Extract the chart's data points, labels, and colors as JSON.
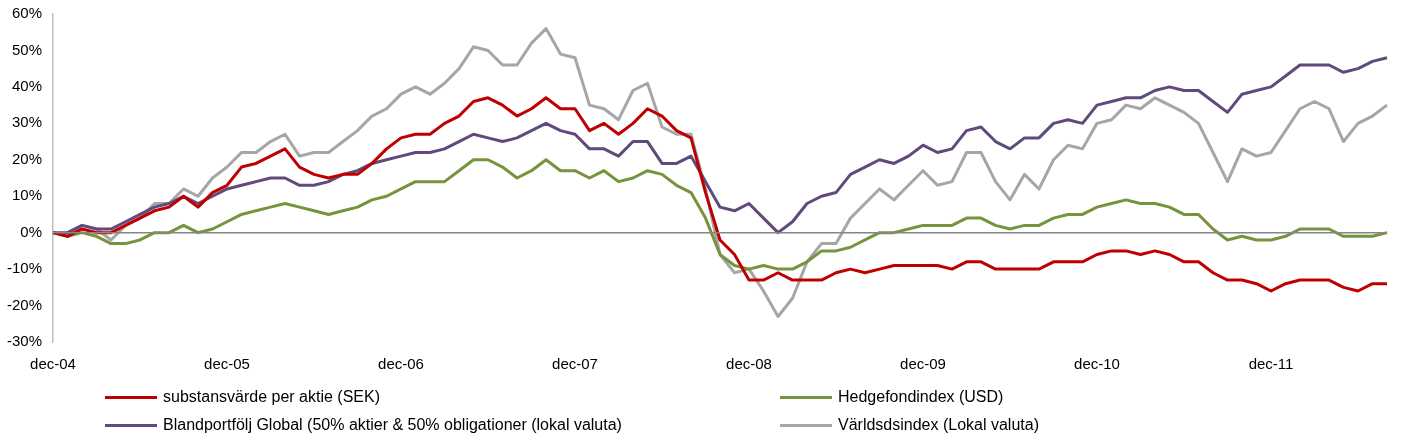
{
  "chart_data": {
    "type": "line",
    "categories": [
      "dec-04",
      null,
      null,
      null,
      null,
      null,
      null,
      null,
      null,
      null,
      null,
      null,
      "dec-05",
      null,
      null,
      null,
      null,
      null,
      null,
      null,
      null,
      null,
      null,
      null,
      "dec-06",
      null,
      null,
      null,
      null,
      null,
      null,
      null,
      null,
      null,
      null,
      null,
      "dec-07",
      null,
      null,
      null,
      null,
      null,
      null,
      null,
      null,
      null,
      null,
      null,
      "dec-08",
      null,
      null,
      null,
      null,
      null,
      null,
      null,
      null,
      null,
      null,
      null,
      "dec-09",
      null,
      null,
      null,
      null,
      null,
      null,
      null,
      null,
      null,
      null,
      null,
      "dec-10",
      null,
      null,
      null,
      null,
      null,
      null,
      null,
      null,
      null,
      null,
      null,
      "dec-11",
      null,
      null,
      null,
      null,
      null,
      null,
      null,
      null
    ],
    "series": [
      {
        "name": "substansvärde per aktie (SEK)",
        "color": "#c00000",
        "values": [
          0,
          -1,
          1,
          0,
          0,
          2,
          4,
          6,
          7,
          10,
          7,
          11,
          13,
          18,
          19,
          21,
          23,
          18,
          16,
          15,
          16,
          16,
          19,
          23,
          26,
          27,
          27,
          30,
          32,
          36,
          37,
          35,
          32,
          34,
          37,
          34,
          34,
          28,
          30,
          27,
          30,
          34,
          32,
          28,
          26,
          11,
          -2,
          -6,
          -13,
          -13,
          -11,
          -13,
          -13,
          -13,
          -11,
          -10,
          -11,
          -10,
          -9,
          -9,
          -9,
          -9,
          -10,
          -8,
          -8,
          -10,
          -10,
          -10,
          -10,
          -8,
          -8,
          -8,
          -6,
          -5,
          -5,
          -6,
          -5,
          -6,
          -8,
          -8,
          -11,
          -13,
          -13,
          -14,
          -16,
          -14,
          -13,
          -13,
          -13,
          -15,
          -16,
          -14,
          -14
        ]
      },
      {
        "name": "Hedgefondindex (USD)",
        "color": "#77933c",
        "values": [
          0,
          -1,
          0,
          -1,
          -3,
          -3,
          -2,
          0,
          0,
          2,
          0,
          1,
          3,
          5,
          6,
          7,
          8,
          7,
          6,
          5,
          6,
          7,
          9,
          10,
          12,
          14,
          14,
          14,
          17,
          20,
          20,
          18,
          15,
          17,
          20,
          17,
          17,
          15,
          17,
          14,
          15,
          17,
          16,
          13,
          11,
          4,
          -6,
          -9,
          -10,
          -9,
          -10,
          -10,
          -8,
          -5,
          -5,
          -4,
          -2,
          0,
          0,
          1,
          2,
          2,
          2,
          4,
          4,
          2,
          1,
          2,
          2,
          4,
          5,
          5,
          7,
          8,
          9,
          8,
          8,
          7,
          5,
          5,
          1,
          -2,
          -1,
          -2,
          -2,
          -1,
          1,
          1,
          1,
          -1,
          -1,
          -1,
          0
        ]
      },
      {
        "name": "Blandportfölj Global (50% aktier & 50% obligationer (lokal valuta)",
        "color": "#604a7b",
        "values": [
          0,
          0,
          2,
          1,
          1,
          3,
          5,
          7,
          8,
          10,
          8,
          10,
          12,
          13,
          14,
          15,
          15,
          13,
          13,
          14,
          16,
          17,
          19,
          20,
          21,
          22,
          22,
          23,
          25,
          27,
          26,
          25,
          26,
          28,
          30,
          28,
          27,
          23,
          23,
          21,
          25,
          25,
          19,
          19,
          21,
          14,
          7,
          6,
          8,
          4,
          0,
          3,
          8,
          10,
          11,
          16,
          18,
          20,
          19,
          21,
          24,
          22,
          23,
          28,
          29,
          25,
          23,
          26,
          26,
          30,
          31,
          30,
          35,
          36,
          37,
          37,
          39,
          40,
          39,
          39,
          36,
          33,
          38,
          39,
          40,
          43,
          46,
          46,
          46,
          44,
          45,
          47,
          48
        ]
      },
      {
        "name": "Världsdsindex (Lokal valuta)",
        "color": "#a6a6a6",
        "values": [
          0,
          -1,
          2,
          1,
          -2,
          2,
          4,
          8,
          8,
          12,
          10,
          15,
          18,
          22,
          22,
          25,
          27,
          21,
          22,
          22,
          25,
          28,
          32,
          34,
          38,
          40,
          38,
          41,
          45,
          51,
          50,
          46,
          46,
          52,
          56,
          49,
          48,
          35,
          34,
          31,
          39,
          41,
          29,
          27,
          27,
          12,
          -6,
          -11,
          -10,
          -16,
          -23,
          -18,
          -8,
          -3,
          -3,
          4,
          8,
          12,
          9,
          13,
          17,
          13,
          14,
          22,
          22,
          14,
          9,
          16,
          12,
          20,
          24,
          23,
          30,
          31,
          35,
          34,
          37,
          35,
          33,
          30,
          22,
          14,
          23,
          21,
          22,
          28,
          34,
          36,
          34,
          25,
          30,
          32,
          35
        ]
      }
    ],
    "ylim": [
      -30,
      60
    ],
    "yticks": [
      {
        "value": -30,
        "label": "-30%"
      },
      {
        "value": -20,
        "label": "-20%"
      },
      {
        "value": -10,
        "label": "-10%"
      },
      {
        "value": 0,
        "label": "0%"
      },
      {
        "value": 10,
        "label": "10%"
      },
      {
        "value": 20,
        "label": "20%"
      },
      {
        "value": 30,
        "label": "30%"
      },
      {
        "value": 40,
        "label": "40%"
      },
      {
        "value": 50,
        "label": "50%"
      },
      {
        "value": 60,
        "label": "60%"
      }
    ],
    "ref_lines": [
      {
        "axis": "y",
        "value": 0,
        "color": "#868686"
      }
    ],
    "grid": false,
    "legend": "bottom",
    "marker": "none",
    "line_style": "solid"
  }
}
